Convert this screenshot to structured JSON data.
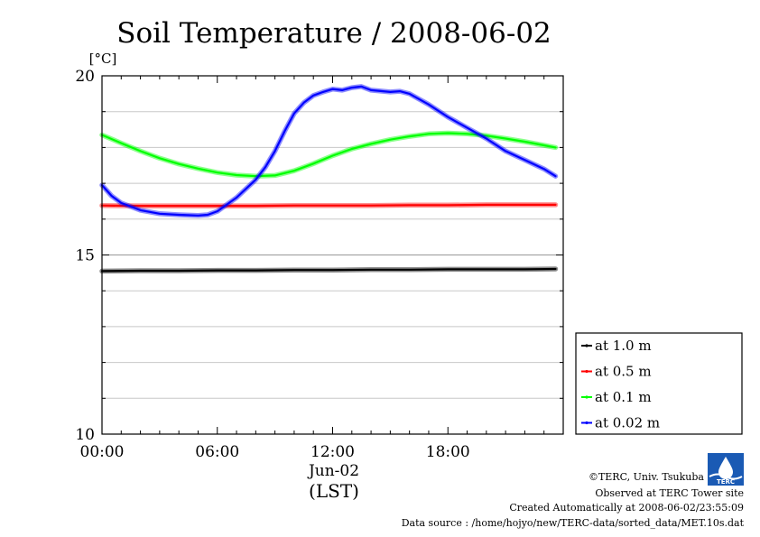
{
  "chart_data": {
    "type": "line",
    "title": "Soil Temperature / 2008-06-02",
    "ylabel": "[°C]",
    "xlabel": "(LST)",
    "date_label": "Jun-02",
    "xlim": [
      0,
      24
    ],
    "ylim": [
      10,
      20
    ],
    "x_ticks": [
      {
        "x": 0,
        "label": "00:00"
      },
      {
        "x": 6,
        "label": "06:00"
      },
      {
        "x": 12,
        "label": "12:00"
      },
      {
        "x": 18,
        "label": "18:00"
      }
    ],
    "y_ticks": [
      {
        "y": 10,
        "label": "10"
      },
      {
        "y": 15,
        "label": "15"
      },
      {
        "y": 20,
        "label": "20"
      }
    ],
    "grid": true,
    "legend_position": "bottom-right outside",
    "series": [
      {
        "name": "at 1.0 m",
        "color": "#000000",
        "x": [
          0,
          2,
          4,
          6,
          8,
          10,
          12,
          14,
          16,
          18,
          20,
          22,
          23.6
        ],
        "y": [
          14.55,
          14.56,
          14.56,
          14.57,
          14.57,
          14.58,
          14.58,
          14.59,
          14.59,
          14.6,
          14.6,
          14.6,
          14.61
        ]
      },
      {
        "name": "at 0.5 m",
        "color": "#ff0000",
        "x": [
          0,
          2,
          4,
          6,
          8,
          10,
          12,
          14,
          16,
          18,
          20,
          22,
          23.6
        ],
        "y": [
          16.38,
          16.37,
          16.37,
          16.37,
          16.37,
          16.38,
          16.38,
          16.38,
          16.39,
          16.39,
          16.4,
          16.4,
          16.4
        ]
      },
      {
        "name": "at 0.1 m",
        "color": "#00ff00",
        "x": [
          0,
          1,
          2,
          3,
          4,
          5,
          6,
          7,
          8,
          9,
          10,
          11,
          12,
          13,
          14,
          15,
          16,
          17,
          18,
          19,
          20,
          21,
          22,
          23,
          23.6
        ],
        "y": [
          18.35,
          18.12,
          17.9,
          17.7,
          17.54,
          17.41,
          17.3,
          17.23,
          17.2,
          17.22,
          17.35,
          17.55,
          17.77,
          17.96,
          18.1,
          18.22,
          18.31,
          18.38,
          18.4,
          18.38,
          18.33,
          18.25,
          18.16,
          18.06,
          18.0
        ]
      },
      {
        "name": "at 0.02 m",
        "color": "#0000ff",
        "x": [
          0,
          0.5,
          1,
          2,
          3,
          4,
          5,
          5.5,
          6,
          7,
          8,
          8.5,
          9,
          9.5,
          10,
          10.5,
          11,
          11.5,
          12,
          12.5,
          13,
          13.5,
          14,
          15,
          15.5,
          16,
          17,
          18,
          19,
          20,
          21,
          22,
          23,
          23.6
        ],
        "y": [
          16.95,
          16.65,
          16.45,
          16.25,
          16.15,
          16.12,
          16.1,
          16.12,
          16.22,
          16.6,
          17.1,
          17.45,
          17.9,
          18.45,
          18.95,
          19.25,
          19.45,
          19.55,
          19.63,
          19.6,
          19.67,
          19.7,
          19.6,
          19.55,
          19.57,
          19.5,
          19.2,
          18.85,
          18.55,
          18.25,
          17.9,
          17.65,
          17.4,
          17.2
        ]
      }
    ]
  },
  "credits": {
    "copyright": "©TERC, Univ. Tsukuba",
    "observed": "Observed at TERC Tower site",
    "created": "Created Automatically at 2008-06-02/23:55:09",
    "source": "Data source : /home/hojyo/new/TERC-data/sorted_data/MET.10s.dat",
    "logo_text": "TERC"
  }
}
